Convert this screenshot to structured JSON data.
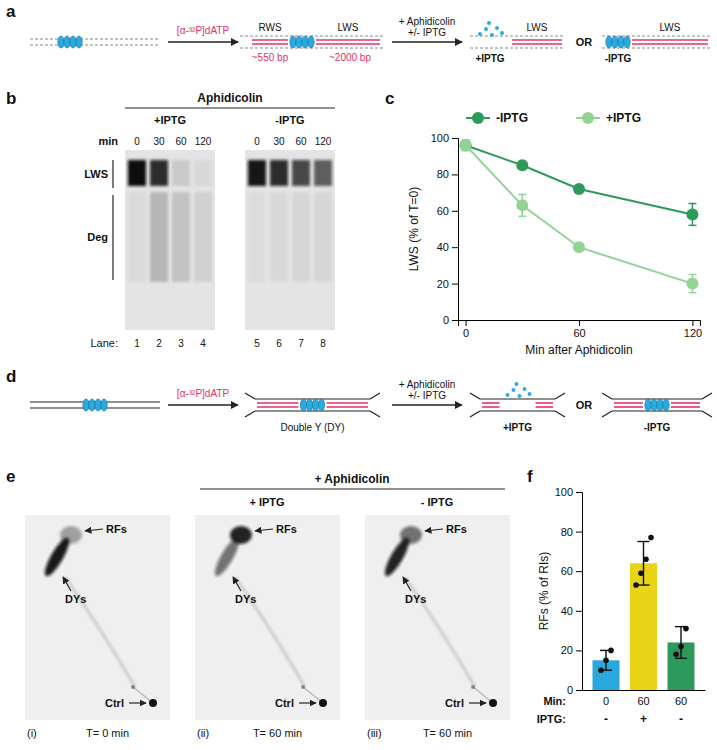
{
  "figure": {
    "a": {
      "panel": "a",
      "reagent": "[α-³²P]dATP",
      "rws": "RWS",
      "lws": "LWS",
      "rws_size": "~550 bp",
      "lws_size": "~2000 bp",
      "treatment": [
        "+ Aphidicolin",
        "+/- IPTG"
      ],
      "outcomes": [
        {
          "condition": "+IPTG",
          "strand": "LWS"
        },
        {
          "condition": "-IPTG",
          "strand": "LWS"
        }
      ],
      "or": "OR"
    },
    "b": {
      "panel": "b",
      "header": "Aphidicolin",
      "groups": [
        "+IPTG",
        "-IPTG"
      ],
      "time_title": "min",
      "times": [
        "0",
        "30",
        "60",
        "120"
      ],
      "bands": [
        "LWS",
        "Deg"
      ],
      "lane_title": "Lane:",
      "lanes": [
        "1",
        "2",
        "3",
        "4",
        "5",
        "6",
        "7",
        "8"
      ]
    },
    "d": {
      "panel": "d",
      "reagent": "[α-³²P]dATP",
      "structure": "Double Y (DY)",
      "treatment": [
        "+ Aphidicolin",
        "+/- IPTG"
      ],
      "outcomes": [
        "+IPTG",
        "-IPTG"
      ],
      "or": "OR"
    },
    "e": {
      "panel": "e",
      "header": "+ Aphidicolin",
      "subheaders": [
        "+ IPTG",
        "- IPTG"
      ],
      "species": [
        "RFs",
        "DYs",
        "Ctrl"
      ],
      "captions": [
        [
          "(i)",
          "T= 0 min"
        ],
        [
          "(ii)",
          "T= 60 min"
        ],
        [
          "(iii)",
          "T= 60 min"
        ]
      ]
    }
  },
  "chart_data": [
    {
      "type": "line",
      "panel": "c",
      "x": [
        0,
        30,
        60,
        120
      ],
      "xlim": [
        -4,
        124
      ],
      "xticks": [
        0,
        60,
        120
      ],
      "ylim": [
        0,
        100
      ],
      "yticks": [
        0,
        20,
        40,
        60,
        80,
        100
      ],
      "x_label": "Min after Aphidicolin",
      "y_label": "LWS (% of T=0)",
      "legend": "top",
      "series": [
        {
          "name": "-IPTG",
          "color": "#2e9a5a",
          "marker": "circle",
          "values": [
            96,
            85,
            72,
            58
          ],
          "errors": [
            2,
            2,
            2,
            6
          ]
        },
        {
          "name": "+IPTG",
          "color": "#93d393",
          "marker": "circle",
          "values": [
            96,
            63,
            40,
            20
          ],
          "errors": [
            3,
            6,
            2,
            5
          ]
        }
      ]
    },
    {
      "type": "bar",
      "panel": "f",
      "categories": [
        "0",
        "60",
        "60"
      ],
      "category_title": "Min:",
      "subcategories": [
        "-",
        "+",
        "-"
      ],
      "subcategory_title": "IPTG:",
      "values": [
        15,
        64,
        24
      ],
      "errors": [
        5,
        11,
        8
      ],
      "points": [
        [
          10,
          15,
          20
        ],
        [
          53,
          59,
          66,
          77
        ],
        [
          18,
          22,
          31
        ]
      ],
      "colors": [
        "#29a8dd",
        "#e9d418",
        "#2e9a5a"
      ],
      "ylim": [
        0,
        100
      ],
      "yticks": [
        0,
        20,
        40,
        60,
        80,
        100
      ],
      "y_label": "RFs (% of RIs)"
    }
  ]
}
